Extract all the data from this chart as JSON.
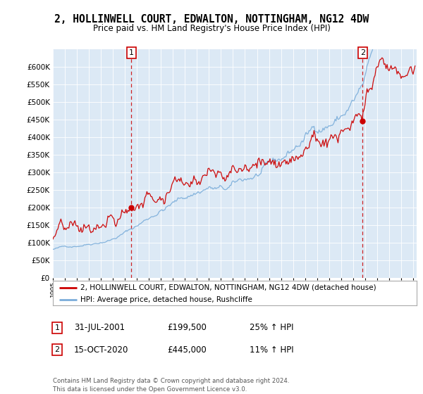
{
  "title": "2, HOLLINWELL COURT, EDWALTON, NOTTINGHAM, NG12 4DW",
  "subtitle": "Price paid vs. HM Land Registry's House Price Index (HPI)",
  "red_label": "2, HOLLINWELL COURT, EDWALTON, NOTTINGHAM, NG12 4DW (detached house)",
  "blue_label": "HPI: Average price, detached house, Rushcliffe",
  "annotation1_date": "31-JUL-2001",
  "annotation1_price": "£199,500",
  "annotation1_hpi": "25% ↑ HPI",
  "annotation2_date": "15-OCT-2020",
  "annotation2_price": "£445,000",
  "annotation2_hpi": "11% ↑ HPI",
  "footer": "Contains HM Land Registry data © Crown copyright and database right 2024.\nThis data is licensed under the Open Government Licence v3.0.",
  "bg_color": "#dce9f5",
  "ylim": [
    0,
    650000
  ],
  "yticks": [
    0,
    50000,
    100000,
    150000,
    200000,
    250000,
    300000,
    350000,
    400000,
    450000,
    500000,
    550000,
    600000
  ],
  "red_color": "#cc0000",
  "blue_color": "#7aadda",
  "sale1_year_float": 2001.542,
  "sale1_val": 199500,
  "sale2_year_float": 2020.792,
  "sale2_val": 445000
}
